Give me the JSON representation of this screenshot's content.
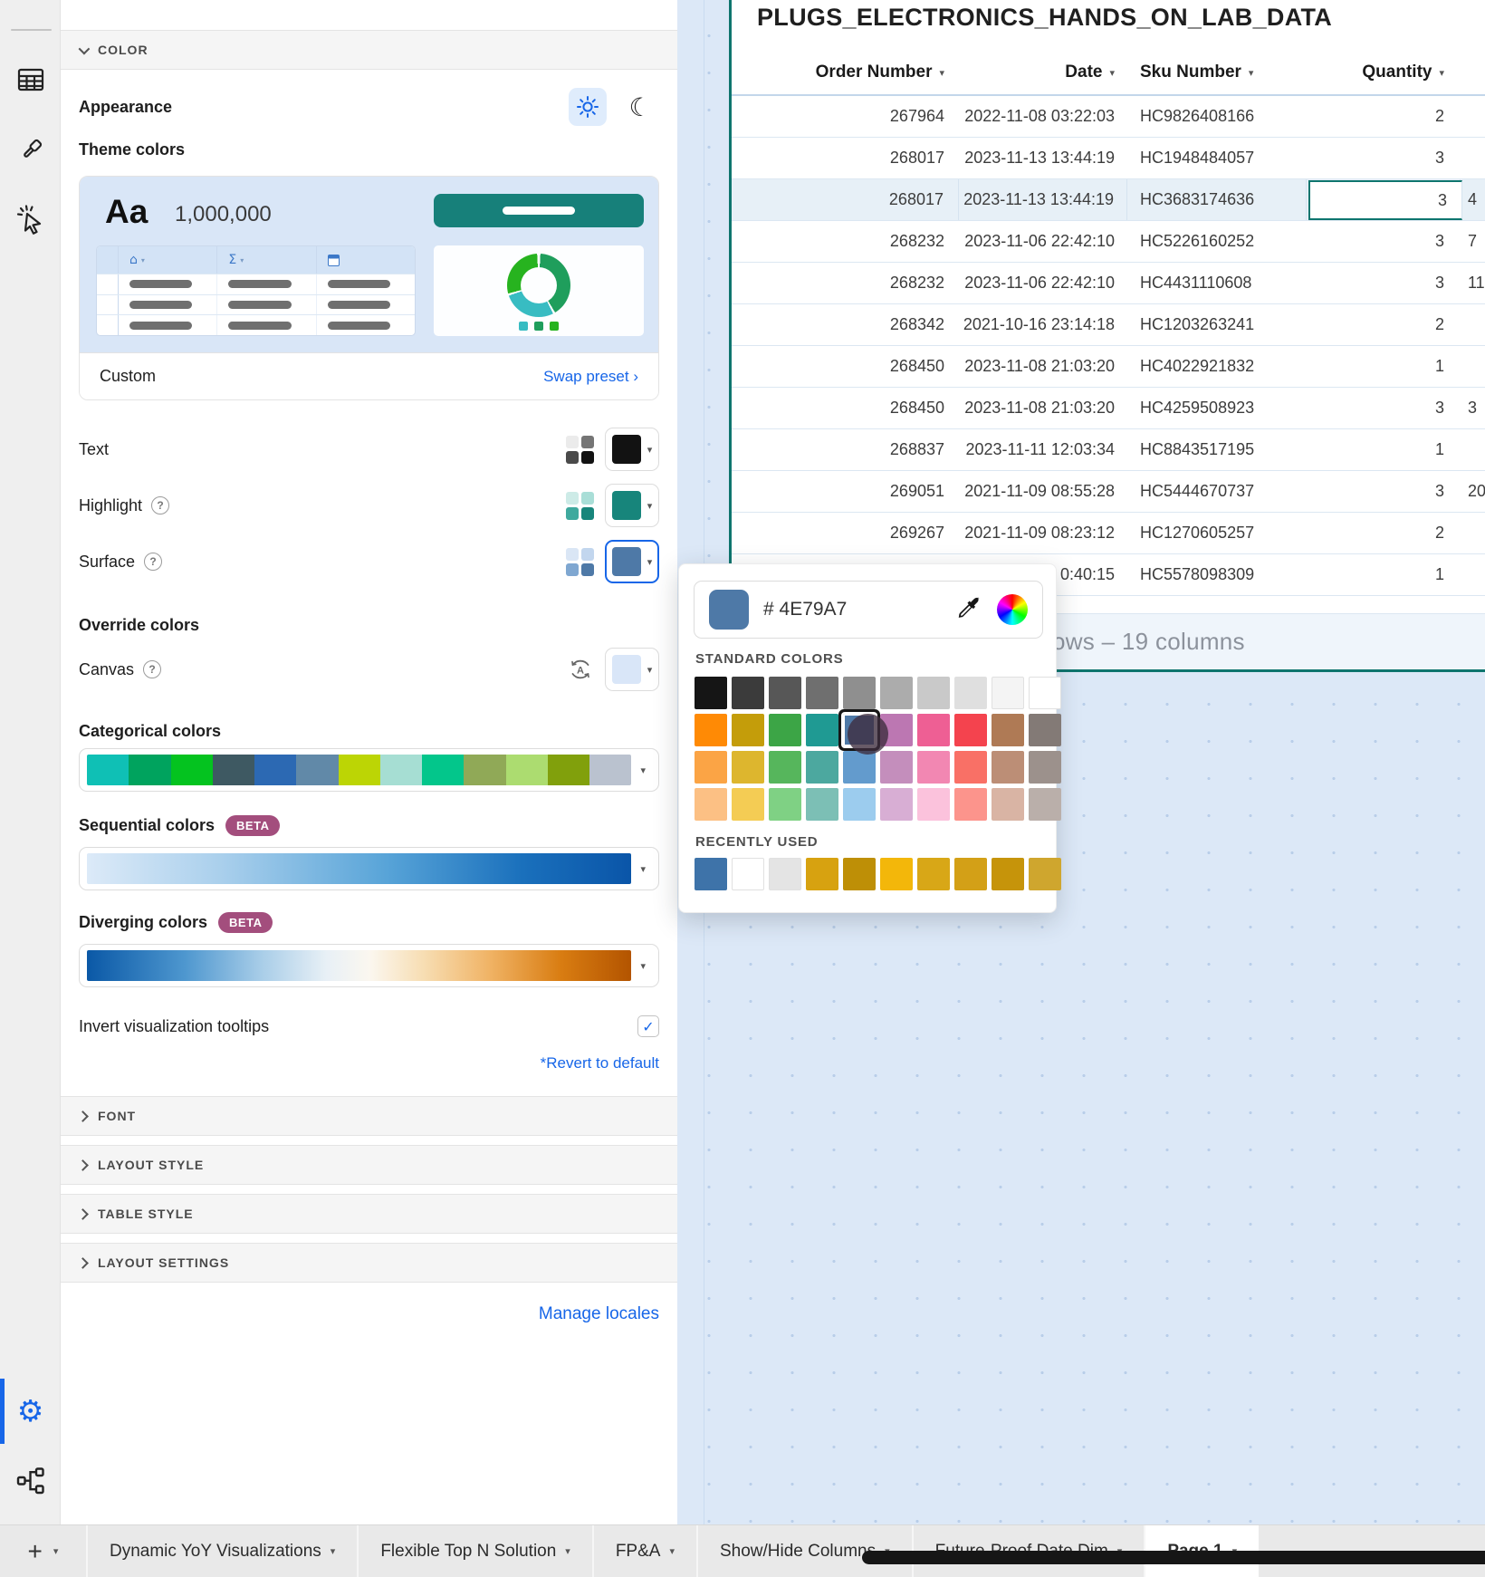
{
  "accent": {
    "blue": "#1766E8",
    "teal": "#0E756E",
    "link_blue": "#1766E8"
  },
  "sidebar": {
    "icons": [
      "table-icon",
      "paintbrush-icon",
      "cursor-click-icon",
      "gear-icon",
      "lineage-icon"
    ],
    "active_icon": "gear-icon"
  },
  "panel": {
    "sections_open": {
      "color_label": "COLOR"
    },
    "appearance": {
      "label": "Appearance",
      "light_mode": "sun-icon",
      "dark_mode": "moon-icon"
    },
    "theme": {
      "label": "Theme colors",
      "aa": "Aa",
      "number": "1,000,000",
      "button_color": "#17807A",
      "preview_bg": "#D9E6F7",
      "donut_colors": [
        "#1F9E5C",
        "#38BCC2",
        "#27B31F"
      ],
      "dot_colors": [
        "#38BCC2",
        "#1F9E5C",
        "#27B31F"
      ],
      "footer_left": "Custom",
      "footer_link": "Swap preset",
      "footer_link_arrow": "›"
    },
    "color_rows": [
      {
        "label": "Text",
        "help": false,
        "minis": [
          "#EBEBEB",
          "#757575",
          "#4A4A4A",
          "#121212"
        ],
        "main": "#121212",
        "focused": false
      },
      {
        "label": "Highlight",
        "help": true,
        "minis": [
          "#CDEBE7",
          "#A9DED7",
          "#3FA99E",
          "#17857B"
        ],
        "main": "#17857B",
        "focused": false
      },
      {
        "label": "Surface",
        "help": true,
        "minis": [
          "#DAE6F5",
          "#C2D6EE",
          "#7FA7D1",
          "#4E79A7"
        ],
        "main": "#4E79A7",
        "focused": true
      }
    ],
    "override_label": "Override colors",
    "canvas_row": {
      "label": "Canvas",
      "help": true,
      "main": "#D9E6F8"
    },
    "categorical": {
      "label": "Categorical colors",
      "colors": [
        "#0FC0B5",
        "#00A35E",
        "#04C31F",
        "#3E5962",
        "#2C69B3",
        "#6189A8",
        "#BCD505",
        "#A6DED3",
        "#03C68B",
        "#90A957",
        "#ACDC70",
        "#81A00C",
        "#BAC2CF"
      ]
    },
    "sequential": {
      "label": "Sequential colors",
      "beta": "BETA"
    },
    "diverging": {
      "label": "Diverging colors",
      "beta": "BETA"
    },
    "invert_tooltips": {
      "label": "Invert visualization tooltips",
      "checked": true,
      "check_glyph": "✓"
    },
    "revert_link": "*Revert to default",
    "collapsed_sections": [
      "FONT",
      "LAYOUT STYLE",
      "TABLE STYLE",
      "LAYOUT SETTINGS"
    ],
    "manage_locales": "Manage locales"
  },
  "popup": {
    "hex_value": "# 4E79A7",
    "hex_color": "#4E79A7",
    "icons": [
      "eyedropper-icon",
      "color-wheel-icon"
    ],
    "standard_label": "STANDARD COLORS",
    "standard_colors": [
      [
        "#151515",
        "#3B3B3B",
        "#575757",
        "#6F6F6F",
        "#8F8F8F",
        "#ACACAC",
        "#C9C9C9",
        "#DFDFDF",
        "#F4F4F4",
        "#FFFFFF"
      ],
      [
        "#FF8A05",
        "#C49D0A",
        "#3CA546",
        "#1F9A93",
        "#4E79A7",
        "#BC77B2",
        "#EE5F94",
        "#F4434E",
        "#AF7A55",
        "#837A76"
      ],
      [
        "#FBA445",
        "#DDB62E",
        "#56B65C",
        "#4CA89F",
        "#639BCD",
        "#C48EBC",
        "#F287B2",
        "#F97066",
        "#BC8E76",
        "#9C918C"
      ],
      [
        "#FCC084",
        "#F4CC54",
        "#7FD184",
        "#7CBFB5",
        "#9CCCEE",
        "#D8AED4",
        "#FBC2DC",
        "#FC948C",
        "#D9B4A4",
        "#BAAFAA"
      ]
    ],
    "selected": {
      "row": 1,
      "col": 4
    },
    "recent_label": "RECENTLY USED",
    "recent_colors": [
      "#3E73A9",
      "#FFFFFF",
      "#E4E4E4",
      "#D7A210",
      "#BE8F06",
      "#F3B70A",
      "#D8A717",
      "#D3A017",
      "#C6940A",
      "#CFA62E"
    ]
  },
  "table": {
    "title": "PLUGS_ELECTRONICS_HANDS_ON_LAB_DATA",
    "columns": [
      "Order Number",
      "Date",
      "Sku Number",
      "Quantity"
    ],
    "rows": [
      {
        "order": "267964",
        "date": "2022-11-08 03:22:03",
        "sku": "HC9826408166",
        "qty": "2",
        "extra": "",
        "selected": false
      },
      {
        "order": "268017",
        "date": "2023-11-13 13:44:19",
        "sku": "HC1948484057",
        "qty": "3",
        "extra": "",
        "selected": false
      },
      {
        "order": "268017",
        "date": "2023-11-13 13:44:19",
        "sku": "HC3683174636",
        "qty": "3",
        "extra": "4",
        "selected": true
      },
      {
        "order": "268232",
        "date": "2023-11-06 22:42:10",
        "sku": "HC5226160252",
        "qty": "3",
        "extra": "7",
        "selected": false
      },
      {
        "order": "268232",
        "date": "2023-11-06 22:42:10",
        "sku": "HC4431110608",
        "qty": "3",
        "extra": "11",
        "selected": false
      },
      {
        "order": "268342",
        "date": "2021-10-16 23:14:18",
        "sku": "HC1203263241",
        "qty": "2",
        "extra": "",
        "selected": false
      },
      {
        "order": "268450",
        "date": "2023-11-08 21:03:20",
        "sku": "HC4022921832",
        "qty": "1",
        "extra": "",
        "selected": false
      },
      {
        "order": "268450",
        "date": "2023-11-08 21:03:20",
        "sku": "HC4259508923",
        "qty": "3",
        "extra": "3",
        "selected": false
      },
      {
        "order": "268837",
        "date": "2023-11-11 12:03:34",
        "sku": "HC8843517195",
        "qty": "1",
        "extra": "",
        "selected": false
      },
      {
        "order": "269051",
        "date": "2021-11-09 08:55:28",
        "sku": "HC5444670737",
        "qty": "3",
        "extra": "20",
        "selected": false
      },
      {
        "order": "269267",
        "date": "2021-11-09 08:23:12",
        "sku": "HC1270605257",
        "qty": "2",
        "extra": "",
        "selected": false
      },
      {
        "order": "",
        "date": "0:40:15",
        "sku": "HC5578098309",
        "qty": "1",
        "extra": "",
        "selected": false
      }
    ],
    "footer_text": "rows – 19 columns"
  },
  "tabs": {
    "plus": "+",
    "items": [
      {
        "label": "Dynamic YoY Visualizations",
        "active": false
      },
      {
        "label": "Flexible Top N Solution",
        "active": false
      },
      {
        "label": "FP&A",
        "active": false
      },
      {
        "label": "Show/Hide Columns",
        "active": false
      },
      {
        "label": "Future-Proof Date Dim",
        "active": false
      },
      {
        "label": "Page 1",
        "active": true
      }
    ]
  }
}
